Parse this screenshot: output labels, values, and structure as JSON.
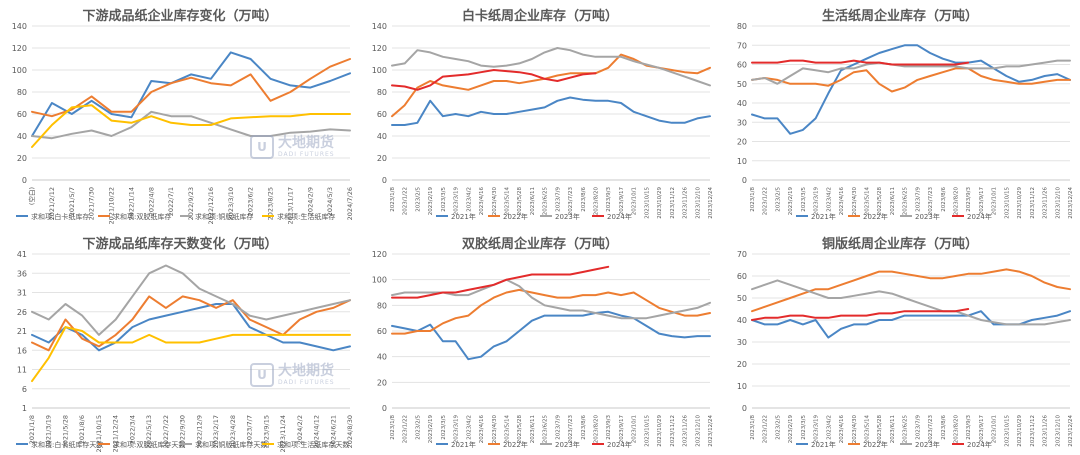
{
  "chart_data": [
    {
      "type": "line",
      "title": "下游成品纸企业库存变化（万吨）",
      "ylim": [
        0,
        140
      ],
      "yticks": [
        0,
        20,
        40,
        60,
        80,
        100,
        120,
        140
      ],
      "x": [
        "(空白)",
        "2021/2/12",
        "2021/5/7",
        "2021/7/30",
        "2021/10/22",
        "2022/1/14",
        "2022/4/8",
        "2022/7/1",
        "2022/9/23",
        "2022/12/16",
        "2023/3/10",
        "2023/6/2",
        "2023/8/25",
        "2023/11/17",
        "2024/2/9",
        "2024/5/3",
        "2024/7/26"
      ],
      "watermark": {
        "cn": "大地期货",
        "en": "DADI FUTURES"
      },
      "series": [
        {
          "name": "求和项:白卡纸库存",
          "color": "#4a86c5",
          "values": [
            40,
            70,
            60,
            72,
            60,
            57,
            90,
            88,
            96,
            92,
            116,
            110,
            92,
            86,
            84,
            90,
            97
          ]
        },
        {
          "name": "求和项:双胶纸库存",
          "color": "#ed7d31",
          "values": [
            62,
            58,
            64,
            76,
            62,
            62,
            80,
            88,
            93,
            88,
            86,
            96,
            72,
            80,
            92,
            103,
            110
          ]
        },
        {
          "name": "求和项:铜版纸库存",
          "color": "#a5a5a5",
          "values": [
            40,
            38,
            42,
            45,
            40,
            48,
            62,
            58,
            58,
            52,
            46,
            40,
            40,
            43,
            44,
            46,
            45
          ]
        },
        {
          "name": "求和项:生活纸库存",
          "color": "#ffc000",
          "values": [
            30,
            50,
            66,
            68,
            54,
            52,
            58,
            52,
            50,
            50,
            56,
            57,
            58,
            58,
            60,
            60,
            60
          ]
        }
      ]
    },
    {
      "type": "line",
      "title": "白卡纸周企业库存（万吨）",
      "ylim": [
        0,
        140
      ],
      "yticks": [
        0,
        20,
        40,
        60,
        80,
        100,
        120,
        140
      ],
      "x": [
        "2023/1/8",
        "2023/1/22",
        "2023/2/5",
        "2023/2/19",
        "2023/3/5",
        "2023/3/19",
        "2023/4/2",
        "2023/4/16",
        "2023/4/30",
        "2023/5/14",
        "2023/5/28",
        "2023/6/11",
        "2023/6/25",
        "2023/7/9",
        "2023/7/23",
        "2023/8/6",
        "2023/8/20",
        "2023/9/3",
        "2023/9/17",
        "2023/10/1",
        "2023/10/15",
        "2023/10/29",
        "2023/11/12",
        "2023/11/26",
        "2023/12/10",
        "2023/12/24"
      ],
      "series": [
        {
          "name": "2021年",
          "color": "#4a86c5",
          "values": [
            50,
            50,
            52,
            72,
            58,
            60,
            58,
            62,
            60,
            60,
            62,
            64,
            66,
            72,
            75,
            73,
            72,
            72,
            70,
            62,
            58,
            54,
            52,
            52,
            56,
            58
          ]
        },
        {
          "name": "2022年",
          "color": "#ed7d31",
          "values": [
            58,
            68,
            84,
            90,
            86,
            84,
            82,
            86,
            90,
            90,
            88,
            90,
            92,
            95,
            97,
            97,
            97,
            102,
            114,
            110,
            104,
            102,
            100,
            98,
            97,
            102
          ]
        },
        {
          "name": "2023年",
          "color": "#a5a5a5",
          "values": [
            104,
            106,
            118,
            116,
            112,
            110,
            108,
            104,
            103,
            104,
            106,
            110,
            116,
            120,
            118,
            114,
            112,
            112,
            112,
            108,
            105,
            102,
            98,
            94,
            90,
            86
          ]
        },
        {
          "name": "2024年",
          "color": "#e32b2b",
          "values": [
            86,
            85,
            82,
            86,
            94,
            95,
            96,
            98,
            100,
            99,
            98,
            96,
            92,
            90,
            93,
            96,
            97,
            null,
            null,
            null,
            null,
            null,
            null,
            null,
            null,
            null
          ]
        }
      ]
    },
    {
      "type": "line",
      "title": "生活纸周企业库存（万吨）",
      "ylim": [
        0,
        80
      ],
      "yticks": [
        0,
        10,
        20,
        30,
        40,
        50,
        60,
        70,
        80
      ],
      "x": [
        "2023/1/8",
        "2023/1/22",
        "2023/2/5",
        "2023/2/19",
        "2023/3/5",
        "2023/3/19",
        "2023/4/2",
        "2023/4/16",
        "2023/4/30",
        "2023/5/14",
        "2023/5/28",
        "2023/6/11",
        "2023/6/25",
        "2023/7/9",
        "2023/7/23",
        "2023/8/6",
        "2023/8/20",
        "2023/9/3",
        "2023/9/17",
        "2023/10/1",
        "2023/10/15",
        "2023/10/29",
        "2023/11/12",
        "2023/11/26",
        "2023/12/10",
        "2023/12/24"
      ],
      "series": [
        {
          "name": "2021年",
          "color": "#4a86c5",
          "values": [
            34,
            32,
            32,
            24,
            26,
            32,
            45,
            57,
            60,
            63,
            66,
            68,
            70,
            70,
            66,
            63,
            61,
            61,
            62,
            58,
            54,
            51,
            52,
            54,
            55,
            52
          ]
        },
        {
          "name": "2022年",
          "color": "#ed7d31",
          "values": [
            52,
            53,
            52,
            50,
            50,
            50,
            49,
            52,
            56,
            57,
            50,
            46,
            48,
            52,
            54,
            56,
            58,
            58,
            54,
            52,
            51,
            50,
            50,
            51,
            52,
            52
          ]
        },
        {
          "name": "2023年",
          "color": "#a5a5a5",
          "values": [
            52,
            53,
            50,
            54,
            58,
            57,
            56,
            58,
            58,
            60,
            61,
            60,
            59,
            59,
            59,
            59,
            59,
            58,
            58,
            58,
            59,
            59,
            60,
            61,
            62,
            62
          ]
        },
        {
          "name": "2024年",
          "color": "#e32b2b",
          "values": [
            61,
            61,
            61,
            62,
            62,
            61,
            61,
            61,
            62,
            61,
            61,
            60,
            60,
            60,
            60,
            60,
            60,
            61,
            null,
            null,
            null,
            null,
            null,
            null,
            null,
            null
          ]
        }
      ]
    },
    {
      "type": "line",
      "title": "下游成品纸库存天数变化（万吨）",
      "ylim": [
        1,
        41
      ],
      "yticks": [
        1,
        6,
        11,
        16,
        21,
        26,
        31,
        36,
        41
      ],
      "x": [
        "2021/1/8",
        "2021/3/19",
        "2021/5/28",
        "2021/8/6",
        "2021/10/15",
        "2021/12/24",
        "2022/3/4",
        "2022/5/13",
        "2022/7/22",
        "2022/9/30",
        "2022/12/9",
        "2023/2/17",
        "2023/4/28",
        "2023/7/7",
        "2023/9/15",
        "2023/11/24",
        "2024/2/2",
        "2024/4/12",
        "2024/6/21",
        "2024/8/30"
      ],
      "watermark": {
        "cn": "大地期货",
        "en": "DADI FUTURES"
      },
      "series": [
        {
          "name": "求和项:白卡纸库存天数",
          "color": "#4a86c5",
          "values": [
            20,
            18,
            22,
            20,
            16,
            18,
            22,
            24,
            25,
            26,
            27,
            28,
            28,
            22,
            20,
            18,
            18,
            17,
            16,
            17
          ]
        },
        {
          "name": "求和项:双胶纸库存天数",
          "color": "#ed7d31",
          "values": [
            18,
            16,
            24,
            19,
            17,
            20,
            24,
            30,
            27,
            30,
            29,
            27,
            29,
            24,
            22,
            20,
            24,
            26,
            27,
            29
          ]
        },
        {
          "name": "求和项:铜版纸库存天数",
          "color": "#a5a5a5",
          "values": [
            26,
            24,
            28,
            25,
            20,
            24,
            30,
            36,
            38,
            36,
            32,
            30,
            28,
            25,
            24,
            25,
            26,
            27,
            28,
            29
          ]
        },
        {
          "name": "求和项:生活纸库存天数",
          "color": "#ffc000",
          "values": [
            8,
            14,
            22,
            21,
            18,
            18,
            18,
            20,
            18,
            18,
            18,
            19,
            20,
            20,
            20,
            20,
            20,
            20,
            20,
            20
          ]
        }
      ]
    },
    {
      "type": "line",
      "title": "双胶纸周企业库存（万吨）",
      "ylim": [
        0,
        120
      ],
      "yticks": [
        0,
        20,
        40,
        60,
        80,
        100,
        120
      ],
      "x": [
        "2023/1/8",
        "2023/1/22",
        "2023/2/5",
        "2023/2/19",
        "2023/3/5",
        "2023/3/19",
        "2023/4/2",
        "2023/4/16",
        "2023/4/30",
        "2023/5/14",
        "2023/5/28",
        "2023/6/11",
        "2023/6/25",
        "2023/7/9",
        "2023/7/23",
        "2023/8/6",
        "2023/8/20",
        "2023/9/3",
        "2023/9/17",
        "2023/10/1",
        "2023/10/15",
        "2023/10/29",
        "2023/11/12",
        "2023/11/26",
        "2023/12/10",
        "2023/12/24"
      ],
      "series": [
        {
          "name": "2021年",
          "color": "#4a86c5",
          "values": [
            64,
            62,
            60,
            65,
            52,
            52,
            38,
            40,
            48,
            52,
            60,
            68,
            72,
            72,
            72,
            72,
            74,
            75,
            72,
            70,
            64,
            58,
            56,
            55,
            56,
            56
          ]
        },
        {
          "name": "2022年",
          "color": "#ed7d31",
          "values": [
            58,
            58,
            60,
            60,
            66,
            70,
            72,
            80,
            86,
            90,
            92,
            90,
            88,
            86,
            86,
            88,
            88,
            90,
            88,
            90,
            84,
            78,
            75,
            72,
            72,
            74
          ]
        },
        {
          "name": "2023年",
          "color": "#a5a5a5",
          "values": [
            88,
            90,
            90,
            90,
            90,
            88,
            88,
            92,
            96,
            100,
            95,
            86,
            80,
            78,
            76,
            76,
            74,
            72,
            70,
            70,
            70,
            72,
            74,
            76,
            78,
            82
          ]
        },
        {
          "name": "2024年",
          "color": "#e32b2b",
          "values": [
            86,
            86,
            86,
            88,
            90,
            90,
            92,
            94,
            96,
            100,
            102,
            104,
            104,
            104,
            104,
            106,
            108,
            110,
            null,
            null,
            null,
            null,
            null,
            null,
            null,
            null
          ]
        }
      ]
    },
    {
      "type": "line",
      "title": "铜版纸周企业库存（万吨）",
      "ylim": [
        0,
        70
      ],
      "yticks": [
        0,
        10,
        20,
        30,
        40,
        50,
        60,
        70
      ],
      "x": [
        "2023/1/8",
        "2023/1/22",
        "2023/2/5",
        "2023/2/19",
        "2023/3/5",
        "2023/3/19",
        "2023/4/2",
        "2023/4/16",
        "2023/4/30",
        "2023/5/14",
        "2023/5/28",
        "2023/6/11",
        "2023/6/25",
        "2023/7/9",
        "2023/7/23",
        "2023/8/6",
        "2023/8/20",
        "2023/9/3",
        "2023/9/17",
        "2023/10/1",
        "2023/10/15",
        "2023/10/29",
        "2023/11/12",
        "2023/11/26",
        "2023/12/10",
        "2023/12/24"
      ],
      "series": [
        {
          "name": "2021年",
          "color": "#4a86c5",
          "values": [
            40,
            38,
            38,
            40,
            38,
            40,
            32,
            36,
            38,
            38,
            40,
            40,
            42,
            42,
            42,
            42,
            42,
            42,
            44,
            38,
            38,
            38,
            40,
            41,
            42,
            44
          ]
        },
        {
          "name": "2022年",
          "color": "#ed7d31",
          "values": [
            44,
            46,
            48,
            50,
            52,
            54,
            54,
            56,
            58,
            60,
            62,
            62,
            61,
            60,
            59,
            59,
            60,
            61,
            61,
            62,
            63,
            62,
            60,
            57,
            55,
            54
          ]
        },
        {
          "name": "2023年",
          "color": "#a5a5a5",
          "values": [
            54,
            56,
            58,
            56,
            54,
            52,
            50,
            50,
            51,
            52,
            53,
            52,
            50,
            48,
            46,
            44,
            44,
            42,
            40,
            39,
            38,
            38,
            38,
            38,
            39,
            40
          ]
        },
        {
          "name": "2024年",
          "color": "#e32b2b",
          "values": [
            40,
            41,
            41,
            42,
            42,
            41,
            41,
            42,
            42,
            42,
            43,
            43,
            44,
            44,
            44,
            44,
            44,
            45,
            null,
            null,
            null,
            null,
            null,
            null,
            null,
            null
          ]
        }
      ]
    }
  ]
}
